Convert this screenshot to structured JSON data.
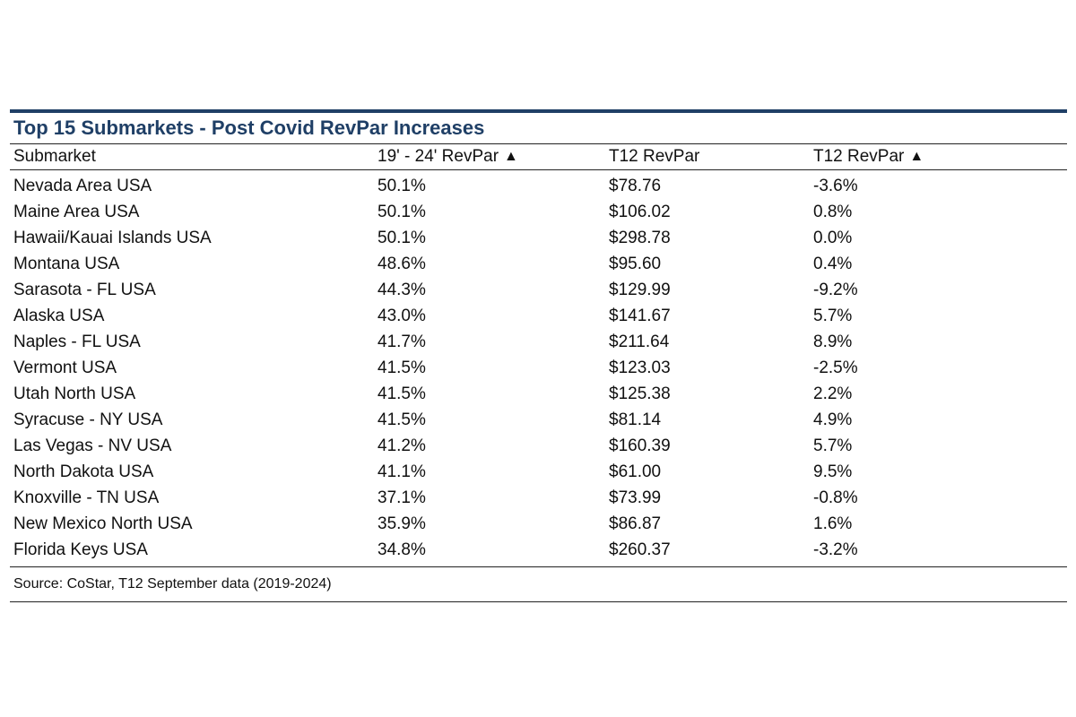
{
  "table": {
    "title": "Top 15 Submarkets - Post Covid RevPar Increases",
    "headers": {
      "submarket": "Submarket",
      "change_19_24": "19' - 24' RevPar",
      "t12": "T12 RevPar",
      "t12_change": "T12 RevPar"
    },
    "arrow_glyph": "▲",
    "rows": [
      {
        "submarket": "Nevada Area USA",
        "change_19_24": "50.1%",
        "t12": "$78.76",
        "t12_change": "-3.6%"
      },
      {
        "submarket": "Maine Area USA",
        "change_19_24": "50.1%",
        "t12": "$106.02",
        "t12_change": "0.8%"
      },
      {
        "submarket": "Hawaii/Kauai Islands USA",
        "change_19_24": "50.1%",
        "t12": "$298.78",
        "t12_change": "0.0%"
      },
      {
        "submarket": "Montana USA",
        "change_19_24": "48.6%",
        "t12": "$95.60",
        "t12_change": "0.4%"
      },
      {
        "submarket": "Sarasota - FL USA",
        "change_19_24": "44.3%",
        "t12": "$129.99",
        "t12_change": "-9.2%"
      },
      {
        "submarket": "Alaska USA",
        "change_19_24": "43.0%",
        "t12": "$141.67",
        "t12_change": "5.7%"
      },
      {
        "submarket": "Naples - FL USA",
        "change_19_24": "41.7%",
        "t12": "$211.64",
        "t12_change": "8.9%"
      },
      {
        "submarket": "Vermont USA",
        "change_19_24": "41.5%",
        "t12": "$123.03",
        "t12_change": "-2.5%"
      },
      {
        "submarket": "Utah North USA",
        "change_19_24": "41.5%",
        "t12": "$125.38",
        "t12_change": "2.2%"
      },
      {
        "submarket": "Syracuse - NY USA",
        "change_19_24": "41.5%",
        "t12": "$81.14",
        "t12_change": "4.9%"
      },
      {
        "submarket": "Las Vegas - NV USA",
        "change_19_24": "41.2%",
        "t12": "$160.39",
        "t12_change": "5.7%"
      },
      {
        "submarket": "North Dakota USA",
        "change_19_24": "41.1%",
        "t12": "$61.00",
        "t12_change": "9.5%"
      },
      {
        "submarket": "Knoxville - TN USA",
        "change_19_24": "37.1%",
        "t12": "$73.99",
        "t12_change": "-0.8%"
      },
      {
        "submarket": "New Mexico North USA",
        "change_19_24": "35.9%",
        "t12": "$86.87",
        "t12_change": "1.6%"
      },
      {
        "submarket": "Florida Keys USA",
        "change_19_24": "34.8%",
        "t12": "$260.37",
        "t12_change": "-3.2%"
      }
    ],
    "source": "Source: CoStar, T12 September data (2019-2024)"
  },
  "colors": {
    "title": "#1f3f66",
    "rule": "#1f3f66"
  }
}
